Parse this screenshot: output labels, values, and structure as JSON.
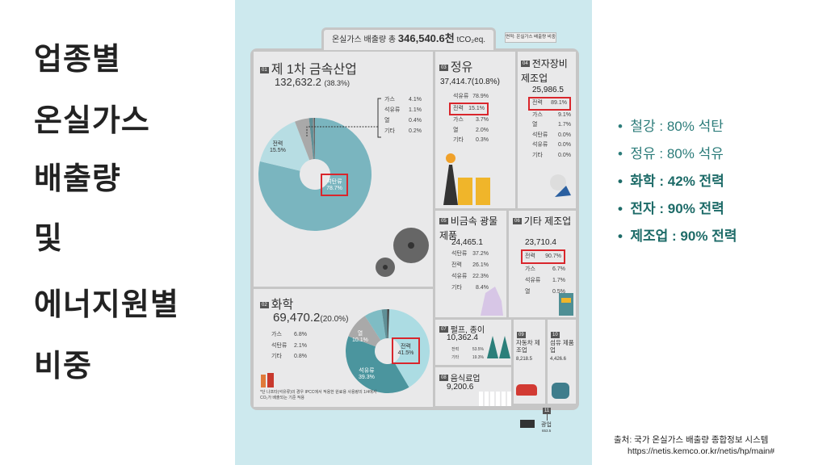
{
  "slide_title": [
    "업종별",
    "온실가스",
    "배출량",
    "및",
    "에너지원별",
    "비중"
  ],
  "infographic": {
    "header_label": "온실가스 배출량 총",
    "header_value": "346,540.6천",
    "header_unit": "tCO₂eq.",
    "note": "면적: 온실가스 배출량 비중",
    "b01": {
      "num": "01",
      "name": "제 1차 금속산업",
      "value": "132,632.2",
      "share": "(38.3%)",
      "donut": [
        {
          "label": "석탄류",
          "pct": 78.7,
          "color": "#7ab5bf"
        },
        {
          "label": "전력",
          "pct": 15.5,
          "color": "#b7dde3"
        },
        {
          "label": "가스",
          "pct": 4.1,
          "color": "#a9a9a9"
        },
        {
          "label": "석유류",
          "pct": 1.1,
          "color": "#5f8f96"
        },
        {
          "label": "열",
          "pct": 0.4,
          "color": "#8c8c8c"
        },
        {
          "label": "기타",
          "pct": 0.2,
          "color": "#444444"
        }
      ],
      "coal_label": "석탄류",
      "coal_pct": "78.7%",
      "elec_label": "전력",
      "elec_pct": "15.5%",
      "minor": [
        [
          "가스",
          "4.1%"
        ],
        [
          "석유류",
          "1.1%"
        ],
        [
          "열",
          "0.4%"
        ],
        [
          "기타",
          "0.2%"
        ]
      ]
    },
    "b02": {
      "num": "02",
      "name": "화학",
      "value": "69,470.2",
      "share": "(20.0%)",
      "donut": [
        {
          "label": "전력",
          "pct": 41.5,
          "color": "#acdce3"
        },
        {
          "label": "석유류",
          "pct": 39.3,
          "color": "#4b959e"
        },
        {
          "label": "열",
          "pct": 10.1,
          "color": "#a9a9a9"
        },
        {
          "label": "가스",
          "pct": 6.8,
          "color": "#7fbcc4"
        },
        {
          "label": "석탄류",
          "pct": 2.1,
          "color": "#5f8f96"
        },
        {
          "label": "기타",
          "pct": 0.8,
          "color": "#444444"
        }
      ],
      "elec_label": "전력",
      "elec_pct": "41.5%",
      "oil_label": "석유류",
      "oil_pct": "39.3%",
      "heat_label": "열",
      "heat_pct": "10.1%",
      "minor": [
        [
          "가스",
          "6.8%"
        ],
        [
          "석탄류",
          "2.1%"
        ],
        [
          "기타",
          "0.8%"
        ]
      ],
      "footnote": "*단 나프타(석유류)의 경우 IPCC에서 적용한 원료용 사용량의 1/4에서 CO₂가 배출되는 기준 적용"
    },
    "b03": {
      "num": "03",
      "name": "정유",
      "value": "37,414.7(10.8%)",
      "rows": [
        [
          "석유류",
          "78.9%"
        ],
        [
          "전력",
          "15.1%"
        ],
        [
          "가스",
          "3.7%"
        ],
        [
          "열",
          "2.0%"
        ],
        [
          "기타",
          "0.3%"
        ]
      ]
    },
    "b04": {
      "num": "04",
      "name": "전자장비 제조업",
      "value": "25,986.5",
      "rows": [
        [
          "전력",
          "89.1%"
        ],
        [
          "가스",
          "9.1%"
        ],
        [
          "열",
          "1.7%"
        ],
        [
          "석탄류",
          "0.0%"
        ],
        [
          "석유류",
          "0.0%"
        ],
        [
          "기타",
          "0.0%"
        ]
      ]
    },
    "b05": {
      "num": "05",
      "name": "비금속 광물제품",
      "value": "24,465.1",
      "rows": [
        [
          "석탄류",
          "37.2%"
        ],
        [
          "전력",
          "26.1%"
        ],
        [
          "석유류",
          "22.3%"
        ],
        [
          "기타",
          "8.4%"
        ]
      ]
    },
    "b06": {
      "num": "06",
      "name": "기타 제조업",
      "value": "23,710.4",
      "rows": [
        [
          "전력",
          "90.7%"
        ],
        [
          "가스",
          "6.7%"
        ],
        [
          "석유류",
          "1.7%"
        ],
        [
          "열",
          "0.5%"
        ]
      ]
    },
    "b07": {
      "num": "07",
      "name": "펄프, 종이",
      "value": "10,362.4",
      "rows": [
        [
          "전력",
          "53.5%"
        ],
        [
          "기타",
          "19.3%"
        ]
      ]
    },
    "b08": {
      "num": "08",
      "name": "음식료업",
      "value": "9,200.6"
    },
    "b09": {
      "num": "09",
      "name": "자동차 제조업",
      "value": "8,218.5"
    },
    "b10": {
      "num": "10",
      "name": "섬유 제품업",
      "value": "4,426.6"
    },
    "b11": {
      "num": "11",
      "name": "광업",
      "value": "653.5"
    }
  },
  "bullets": [
    {
      "text": "철강 : 80% 석탄",
      "bold": false
    },
    {
      "text": "정유 : 80% 석유",
      "bold": false
    },
    {
      "text": "화학 : 42% 전력",
      "bold": true
    },
    {
      "text": "전자 : 90% 전력",
      "bold": true
    },
    {
      "text": "제조업 : 90% 전력",
      "bold": true
    }
  ],
  "source": {
    "line1": "출처: 국가 온실가스 배출량 종합정보 시스템",
    "line2": "https://netis.kemco.or.kr/netis/hp/main#"
  },
  "colors": {
    "accent": "#2c7c7a",
    "panel_bg": "#cde9ee",
    "highlight": "#d9262c"
  }
}
